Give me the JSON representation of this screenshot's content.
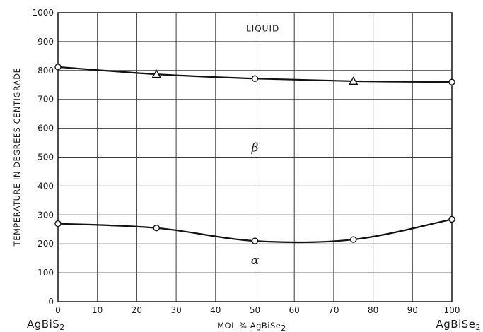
{
  "chart_data": {
    "type": "line",
    "xlabel": "MOL % AgBiSe2",
    "xlabel_parts": {
      "main": "MOL % AgBiSe",
      "sub": "2"
    },
    "ylabel": "TEMPERATURE IN DEGREES CENTIGRADE",
    "xlim": [
      0,
      100
    ],
    "ylim": [
      0,
      1000
    ],
    "x_ticks": [
      0,
      10,
      20,
      30,
      40,
      50,
      60,
      70,
      80,
      90,
      100
    ],
    "y_ticks": [
      0,
      100,
      200,
      300,
      400,
      500,
      600,
      700,
      800,
      900,
      1000
    ],
    "grid": true,
    "end_labels": {
      "left": {
        "main": "AgBiS",
        "sub": "2"
      },
      "right": {
        "main": "AgBiSe",
        "sub": "2"
      }
    },
    "region_labels": {
      "liquid": "LIQUID",
      "beta": "β",
      "alpha": "α"
    },
    "series": [
      {
        "marker": "mixed",
        "x": [
          0,
          25,
          50,
          75,
          100
        ],
        "y": [
          812,
          787,
          772,
          763,
          760
        ],
        "markers": [
          "circle",
          "triangle",
          "circle",
          "triangle",
          "circle"
        ]
      },
      {
        "marker": "circle",
        "x": [
          0,
          25,
          50,
          75,
          100
        ],
        "y": [
          270,
          255,
          210,
          215,
          285
        ],
        "markers": [
          "circle",
          "circle",
          "circle",
          "circle",
          "circle"
        ]
      }
    ]
  }
}
